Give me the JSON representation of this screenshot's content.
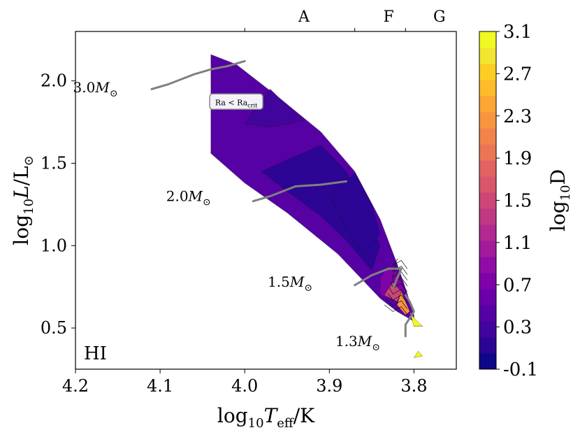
{
  "chart_data": {
    "type": "heatmap",
    "panel_label": "HI",
    "xlabel_main": "log",
    "xlabel_sub": "10",
    "xlabel_var": "T",
    "xlabel_var_sub": "eff",
    "xlabel_unit": "/K",
    "ylabel_main": "log",
    "ylabel_sub": "10",
    "ylabel_var": "L",
    "ylabel_unit": "/L",
    "ylabel_sun": "⊙",
    "xlim": [
      4.2,
      3.75
    ],
    "ylim": [
      0.25,
      2.3
    ],
    "x_ticks": [
      4.2,
      4.1,
      4.0,
      3.9,
      3.8
    ],
    "x_tick_labels": [
      "4.2",
      "4.1",
      "4.0",
      "3.9",
      "3.8"
    ],
    "y_ticks": [
      0.5,
      1.0,
      1.5,
      2.0
    ],
    "y_tick_labels": [
      "0.5",
      "1.0",
      "1.5",
      "2.0"
    ],
    "spectral_ticks": [
      {
        "label": "A",
        "x": 3.93
      },
      {
        "label": "F",
        "x": 3.83
      },
      {
        "label": "G",
        "x": 3.77
      }
    ],
    "spectral_boundaries": [
      4.0,
      3.87,
      3.81
    ],
    "colorbar": {
      "label_main": "log",
      "label_sub": "10",
      "label_var": "D",
      "min": -0.1,
      "max": 3.1,
      "ticks": [
        "3.1",
        "2.7",
        "2.3",
        "1.9",
        "1.5",
        "1.1",
        "0.7",
        "0.3",
        "-0.1"
      ],
      "colors": [
        "#0d0887",
        "#2c0594",
        "#41049d",
        "#5601a4",
        "#6a00a8",
        "#7e03a8",
        "#8f0da4",
        "#a11b9b",
        "#b12a90",
        "#bf3984",
        "#cc4778",
        "#d8576b",
        "#e16462",
        "#eb7655",
        "#f2844b",
        "#f89540",
        "#fca636",
        "#febc2a",
        "#fcce25",
        "#f3e530",
        "#f0f921"
      ]
    },
    "band": {
      "upper_edge": [
        [
          4.04,
          2.16
        ],
        [
          4.01,
          2.1
        ],
        [
          3.96,
          1.9
        ],
        [
          3.91,
          1.69
        ],
        [
          3.87,
          1.45
        ],
        [
          3.84,
          1.16
        ],
        [
          3.82,
          0.89
        ],
        [
          3.81,
          0.74
        ],
        [
          3.8,
          0.58
        ],
        [
          3.8,
          0.51
        ]
      ],
      "lower_edge": [
        [
          3.79,
          0.51
        ],
        [
          3.82,
          0.6
        ],
        [
          3.84,
          0.68
        ],
        [
          3.89,
          0.95
        ],
        [
          3.95,
          1.2
        ],
        [
          4.0,
          1.38
        ],
        [
          4.04,
          1.56
        ]
      ]
    },
    "regions": [
      {
        "level": 0.5,
        "points": [
          [
            4.04,
            2.16
          ],
          [
            4.01,
            2.1
          ],
          [
            3.96,
            1.9
          ],
          [
            3.91,
            1.69
          ],
          [
            3.87,
            1.45
          ],
          [
            3.84,
            1.16
          ],
          [
            3.82,
            0.89
          ],
          [
            3.81,
            0.74
          ],
          [
            3.8,
            0.58
          ],
          [
            3.8,
            0.51
          ],
          [
            3.79,
            0.51
          ],
          [
            3.82,
            0.6
          ],
          [
            3.84,
            0.68
          ],
          [
            3.89,
            0.95
          ],
          [
            3.95,
            1.2
          ],
          [
            4.0,
            1.38
          ],
          [
            4.04,
            1.56
          ]
        ]
      },
      {
        "level": 0.3,
        "points": [
          [
            3.97,
            1.95
          ],
          [
            3.96,
            1.9
          ],
          [
            3.93,
            1.76
          ],
          [
            3.97,
            1.72
          ],
          [
            4.0,
            1.74
          ],
          [
            3.99,
            1.82
          ]
        ]
      },
      {
        "level": 0.2,
        "points": [
          [
            3.98,
            1.45
          ],
          [
            3.95,
            1.52
          ],
          [
            3.91,
            1.61
          ],
          [
            3.88,
            1.45
          ],
          [
            3.86,
            1.22
          ],
          [
            3.84,
            1.0
          ],
          [
            3.85,
            0.85
          ],
          [
            3.88,
            1.03
          ],
          [
            3.91,
            1.18
          ],
          [
            3.95,
            1.33
          ]
        ]
      },
      {
        "level": 0.15,
        "points": [
          [
            3.9,
            1.31
          ],
          [
            3.87,
            1.44
          ],
          [
            3.85,
            1.25
          ],
          [
            3.84,
            1.07
          ],
          [
            3.86,
            0.95
          ],
          [
            3.88,
            1.1
          ]
        ]
      },
      {
        "level": 0.8,
        "points": [
          [
            3.83,
            0.88
          ],
          [
            3.82,
            0.84
          ],
          [
            3.81,
            0.72
          ],
          [
            3.82,
            0.66
          ],
          [
            3.84,
            0.7
          ],
          [
            3.84,
            0.8
          ]
        ]
      },
      {
        "level": 1.5,
        "points": [
          [
            3.825,
            0.78
          ],
          [
            3.815,
            0.72
          ],
          [
            3.82,
            0.66
          ],
          [
            3.835,
            0.7
          ]
        ]
      },
      {
        "level": 2.3,
        "points": [
          [
            3.815,
            0.72
          ],
          [
            3.805,
            0.6
          ],
          [
            3.81,
            0.58
          ],
          [
            3.82,
            0.64
          ]
        ]
      },
      {
        "level": 3.0,
        "points": [
          [
            3.805,
            0.6
          ],
          [
            3.8,
            0.51
          ],
          [
            3.79,
            0.51
          ],
          [
            3.8,
            0.56
          ]
        ]
      },
      {
        "level": 3.1,
        "points": [
          [
            3.795,
            0.36
          ],
          [
            3.79,
            0.33
          ],
          [
            3.8,
            0.32
          ]
        ]
      }
    ],
    "tracks": [
      {
        "label": "3.0",
        "label_pos": [
          4.15,
          1.93
        ],
        "points": [
          [
            4.11,
            1.95
          ],
          [
            4.09,
            1.98
          ],
          [
            4.06,
            2.04
          ],
          [
            4.04,
            2.07
          ],
          [
            4.02,
            2.09
          ],
          [
            4.0,
            2.12
          ]
        ]
      },
      {
        "label": "2.0",
        "label_pos": [
          4.04,
          1.27
        ],
        "points": [
          [
            3.99,
            1.27
          ],
          [
            3.97,
            1.3
          ],
          [
            3.94,
            1.36
          ],
          [
            3.91,
            1.37
          ],
          [
            3.88,
            1.39
          ]
        ]
      },
      {
        "label": "1.5",
        "label_pos": [
          3.92,
          0.75
        ],
        "points": [
          [
            3.87,
            0.76
          ],
          [
            3.85,
            0.82
          ],
          [
            3.83,
            0.86
          ],
          [
            3.815,
            0.86
          ],
          [
            3.82,
            0.8
          ],
          [
            3.825,
            0.74
          ]
        ]
      },
      {
        "label": "1.3",
        "label_pos": [
          3.84,
          0.39
        ],
        "points": [
          [
            3.81,
            0.45
          ],
          [
            3.81,
            0.52
          ],
          [
            3.8,
            0.6
          ],
          [
            3.805,
            0.66
          ],
          [
            3.81,
            0.7
          ]
        ]
      }
    ],
    "track_unit": "M",
    "track_sun": "⊙",
    "annotation_box": {
      "text_main": "Ra < Ra",
      "text_sub": "crit",
      "x": 4.01,
      "y": 1.87
    }
  }
}
